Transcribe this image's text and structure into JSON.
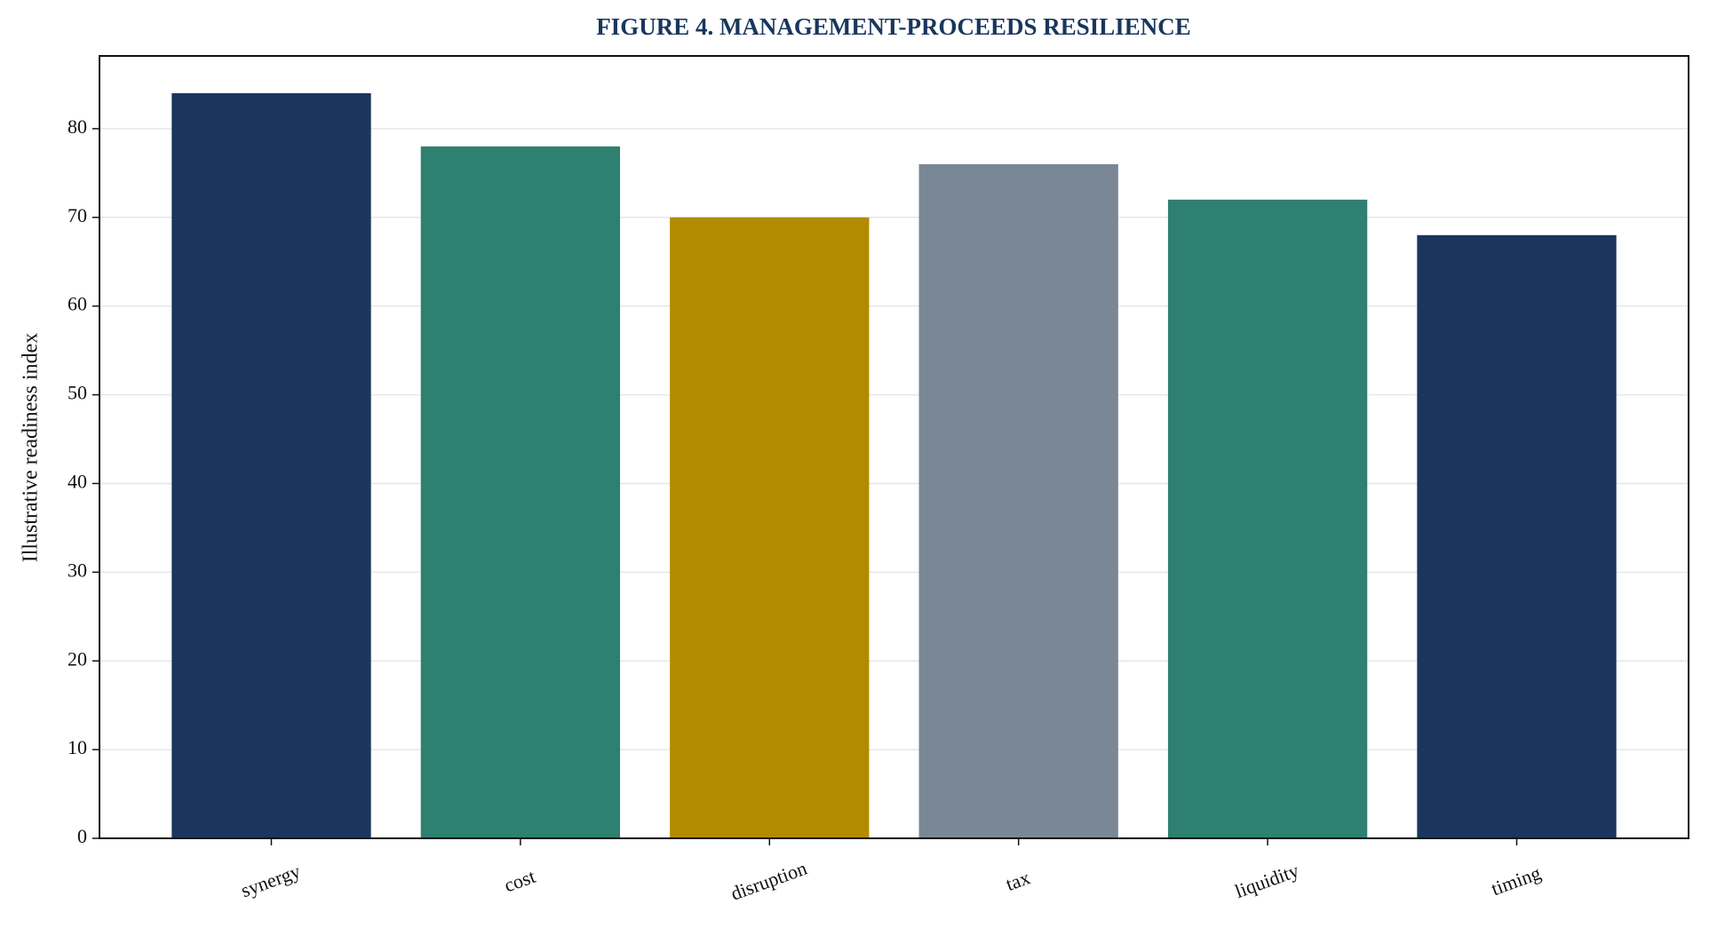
{
  "chart_data": {
    "type": "bar",
    "title": "FIGURE 4. MANAGEMENT-PROCEEDS RESILIENCE",
    "y_label": "Illustrative readiness index",
    "categories": [
      "synergy",
      "cost",
      "disruption",
      "tax",
      "liquidity",
      "timing"
    ],
    "values": [
      84,
      78,
      70,
      76,
      72,
      68
    ],
    "colors": [
      "#1a365d",
      "#2e8070",
      "#b38b00",
      "#7a8795",
      "#2e8070",
      "#1a365d"
    ],
    "ylim": [
      0,
      88.2
    ],
    "yticks": [
      0,
      10,
      20,
      30,
      40,
      50,
      60,
      70,
      80
    ],
    "grid": true
  }
}
